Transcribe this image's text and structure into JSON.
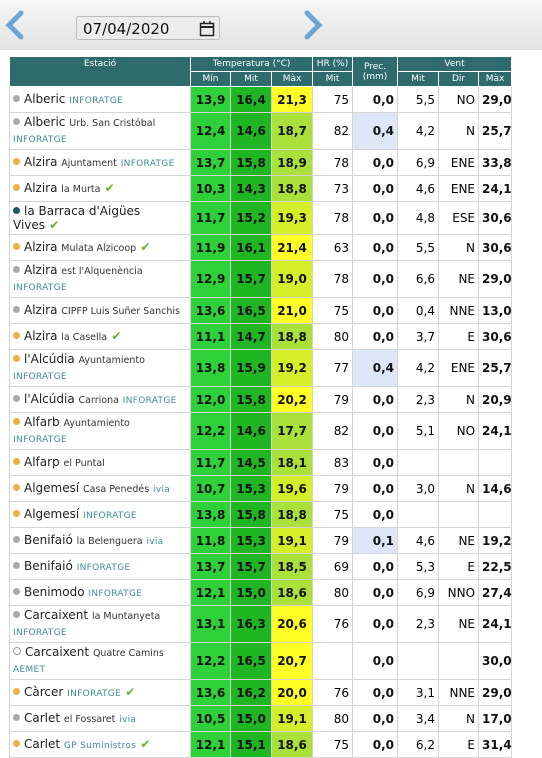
{
  "date": "07/04/2020",
  "table": {
    "groups": {
      "station": "Estació",
      "temperature": "Temperatura (°C)",
      "humidity": "HR (%)",
      "precipitation": "Prec. (mm)",
      "wind": "Vent"
    },
    "subheaders": {
      "min": "Mín",
      "mit": "Mit",
      "max": "Màx",
      "hr": "Mit",
      "wind": "Mit",
      "dir": "Dir",
      "gust": "Màx"
    },
    "rows": [
      {
        "name": "Alberic",
        "sub": null,
        "tag": "INFORATGE",
        "check": false,
        "marker": "#aaaaaa",
        "min": "13,9",
        "mit": "16,4",
        "max": "21,3",
        "hr": "75",
        "prec": "0,0",
        "wind": "5,5",
        "dir": "NO",
        "gust": "29,0"
      },
      {
        "name": "Alberic",
        "sub": "Urb. San Cristóbal",
        "tag": "INFORATGE",
        "check": false,
        "marker": "#aaaaaa",
        "min": "12,4",
        "mit": "14,6",
        "max": "18,7",
        "hr": "82",
        "prec": "0,4",
        "wind": "4,2",
        "dir": "N",
        "gust": "25,7"
      },
      {
        "name": "Alzira",
        "sub": "Ajuntament",
        "tag": "INFORATGE",
        "check": false,
        "marker": "#f0b040",
        "min": "13,7",
        "mit": "15,8",
        "max": "18,9",
        "hr": "78",
        "prec": "0,0",
        "wind": "6,9",
        "dir": "ENE",
        "gust": "33,8"
      },
      {
        "name": "Alzira",
        "sub": "la Murta",
        "tag": null,
        "check": true,
        "marker": "#f0b040",
        "min": "10,3",
        "mit": "14,3",
        "max": "18,8",
        "hr": "73",
        "prec": "0,0",
        "wind": "4,6",
        "dir": "ENE",
        "gust": "24,1"
      },
      {
        "name": "la Barraca d'Aigües Vives",
        "sub": null,
        "tag": null,
        "check": true,
        "marker": "#1d5c5c",
        "min": "11,7",
        "mit": "15,2",
        "max": "19,3",
        "hr": "78",
        "prec": "0,0",
        "wind": "4,8",
        "dir": "ESE",
        "gust": "30,6"
      },
      {
        "name": "Alzira",
        "sub": "Mulata Alzicoop",
        "tag": null,
        "check": true,
        "marker": "#f0b040",
        "min": "11,9",
        "mit": "16,1",
        "max": "21,4",
        "hr": "63",
        "prec": "0,0",
        "wind": "5,5",
        "dir": "N",
        "gust": "30,6"
      },
      {
        "name": "Alzira",
        "sub": "est l'Alquenència",
        "tag": "INFORATGE",
        "check": false,
        "marker": "#aaaaaa",
        "min": "12,9",
        "mit": "15,7",
        "max": "19,0",
        "hr": "78",
        "prec": "0,0",
        "wind": "6,6",
        "dir": "NE",
        "gust": "29,0"
      },
      {
        "name": "Alzira",
        "sub": "CIPFP Luis Suñer Sanchis",
        "tag": null,
        "check": false,
        "marker": "#aaaaaa",
        "min": "13,6",
        "mit": "16,5",
        "max": "21,0",
        "hr": "75",
        "prec": "0,0",
        "wind": "0,4",
        "dir": "NNE",
        "gust": "13,0"
      },
      {
        "name": "Alzira",
        "sub": "la Casella",
        "tag": null,
        "check": true,
        "marker": "#f0b040",
        "min": "11,1",
        "mit": "14,7",
        "max": "18,8",
        "hr": "80",
        "prec": "0,0",
        "wind": "3,7",
        "dir": "E",
        "gust": "30,6"
      },
      {
        "name": "l'Alcúdia",
        "sub": "Ayuntamiento",
        "tag": "INFORATGE",
        "check": false,
        "marker": "#f0b040",
        "min": "13,8",
        "mit": "15,9",
        "max": "19,2",
        "hr": "77",
        "prec": "0,4",
        "wind": "4,2",
        "dir": "ENE",
        "gust": "25,7"
      },
      {
        "name": "l'Alcúdia",
        "sub": "Carriona",
        "tag": "INFORATGE",
        "check": false,
        "marker": "#aaaaaa",
        "min": "12,0",
        "mit": "15,8",
        "max": "20,2",
        "hr": "79",
        "prec": "0,0",
        "wind": "2,3",
        "dir": "N",
        "gust": "20,9"
      },
      {
        "name": "Alfarb",
        "sub": "Ayuntamiento",
        "tag": "INFORATGE",
        "check": false,
        "marker": "#f0b040",
        "min": "12,2",
        "mit": "14,6",
        "max": "17,7",
        "hr": "82",
        "prec": "0,0",
        "wind": "5,1",
        "dir": "NO",
        "gust": "24,1"
      },
      {
        "name": "Alfarp",
        "sub": "el Puntal",
        "tag": null,
        "check": false,
        "marker": "#f0b040",
        "min": "11,7",
        "mit": "14,5",
        "max": "18,1",
        "hr": "83",
        "prec": "0,0",
        "wind": null,
        "dir": null,
        "gust": null
      },
      {
        "name": "Algemesí",
        "sub": "Casa Penedés",
        "tag": "ivia",
        "check": false,
        "marker": "#f0b040",
        "min": "10,7",
        "mit": "15,3",
        "max": "19,6",
        "hr": "79",
        "prec": "0,0",
        "wind": "3,0",
        "dir": "N",
        "gust": "14,6"
      },
      {
        "name": "Algemesí",
        "sub": null,
        "tag": "INFORATGE",
        "check": false,
        "marker": "#f0b040",
        "min": "13,8",
        "mit": "15,8",
        "max": "18,8",
        "hr": "75",
        "prec": "0,0",
        "wind": null,
        "dir": null,
        "gust": null
      },
      {
        "name": "Benifaió",
        "sub": "la Belenguera",
        "tag": "ivia",
        "check": false,
        "marker": "#aaaaaa",
        "min": "11,8",
        "mit": "15,3",
        "max": "19,1",
        "hr": "79",
        "prec": "0,1",
        "wind": "4,6",
        "dir": "NE",
        "gust": "19,2"
      },
      {
        "name": "Benifaió",
        "sub": null,
        "tag": "INFORATGE",
        "check": false,
        "marker": "#aaaaaa",
        "min": "13,7",
        "mit": "15,7",
        "max": "18,5",
        "hr": "69",
        "prec": "0,0",
        "wind": "5,3",
        "dir": "E",
        "gust": "22,5"
      },
      {
        "name": "Benimodo",
        "sub": null,
        "tag": "INFORATGE",
        "check": false,
        "marker": "#aaaaaa",
        "min": "12,1",
        "mit": "15,0",
        "max": "18,6",
        "hr": "80",
        "prec": "0,0",
        "wind": "6,9",
        "dir": "NNO",
        "gust": "27,4"
      },
      {
        "name": "Carcaixent",
        "sub": "la Muntanyeta",
        "tag": "INFORATGE",
        "check": false,
        "marker": "#aaaaaa",
        "min": "13,1",
        "mit": "16,3",
        "max": "20,6",
        "hr": "76",
        "prec": "0,0",
        "wind": "2,3",
        "dir": "NE",
        "gust": "24,1"
      },
      {
        "name": "Carcaixent",
        "sub": "Quatre Camins",
        "tag": "AEMET",
        "check": false,
        "marker": "none",
        "min": "12,2",
        "mit": "16,5",
        "max": "20,7",
        "hr": null,
        "prec": "0,0",
        "wind": null,
        "dir": null,
        "gust": "30,0"
      },
      {
        "name": "Càrcer",
        "sub": null,
        "tag": "INFORATGE",
        "check": true,
        "marker": "#f0b040",
        "min": "13,6",
        "mit": "16,2",
        "max": "20,0",
        "hr": "76",
        "prec": "0,0",
        "wind": "3,1",
        "dir": "NNE",
        "gust": "29,0"
      },
      {
        "name": "Carlet",
        "sub": "el Fossaret",
        "tag": "ivia",
        "check": false,
        "marker": "#aaaaaa",
        "min": "10,5",
        "mit": "15,0",
        "max": "19,1",
        "hr": "80",
        "prec": "0,0",
        "wind": "3,4",
        "dir": "N",
        "gust": "17,0"
      },
      {
        "name": "Carlet",
        "sub": null,
        "tag": "GP Suministros",
        "check": true,
        "marker": "#f0b040",
        "min": "12,1",
        "mit": "15,1",
        "max": "18,6",
        "hr": "75",
        "prec": "0,0",
        "wind": "6,2",
        "dir": "E",
        "gust": "31,4"
      }
    ]
  }
}
